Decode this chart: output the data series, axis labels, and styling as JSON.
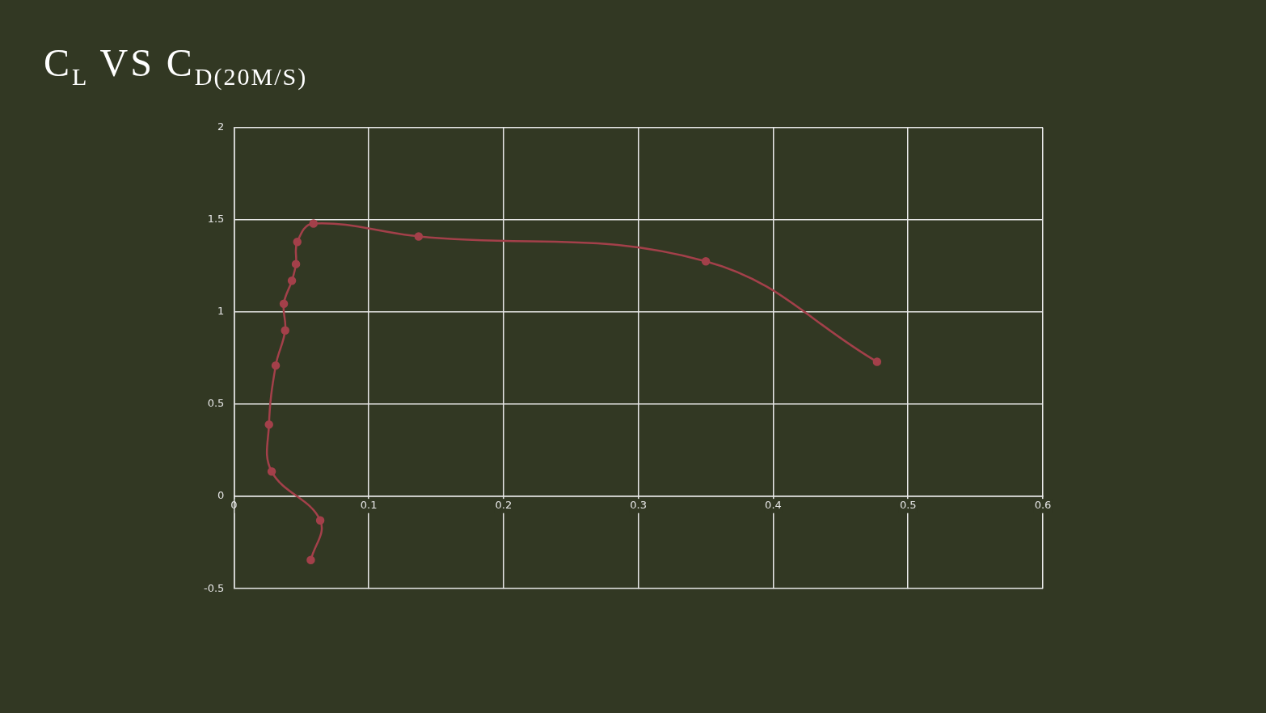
{
  "chart_data": {
    "type": "scatter",
    "title": "C$_{L}$ VS C$_{D(20M/S)}$",
    "series": [
      {
        "color": "#a3404a",
        "type": "line",
        "marker": "circle",
        "x": [
          0.057,
          0.064,
          0.028,
          0.026,
          0.031,
          0.038,
          0.037,
          0.043,
          0.046,
          0.047,
          0.059,
          0.137,
          0.35,
          0.477
        ],
        "values": [
          -0.345,
          -0.13,
          0.135,
          0.39,
          0.71,
          0.9,
          1.045,
          1.17,
          1.26,
          1.38,
          1.48,
          1.41,
          1.275,
          0.73
        ]
      }
    ],
    "xlim": [
      0,
      0.6
    ],
    "xticks": [
      0,
      0.1,
      0.2,
      0.3,
      0.4,
      0.5,
      0.6
    ],
    "ylim": [
      -0.5,
      2
    ],
    "yticks": [
      -0.5,
      0,
      0.5,
      1,
      1.5,
      2
    ],
    "grid": true,
    "legend": false
  }
}
